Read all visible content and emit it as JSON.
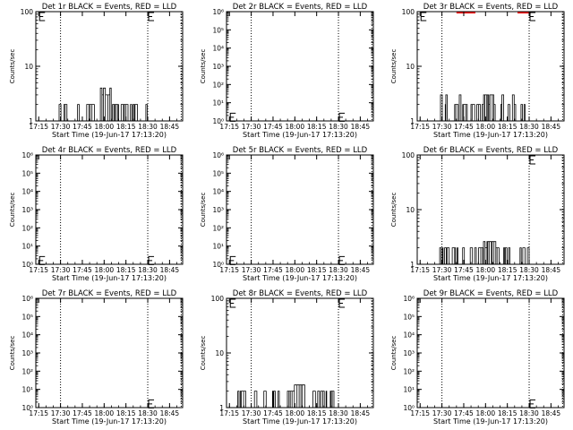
{
  "colors": {
    "events": "#000000",
    "lld": "#ff0000",
    "background": "#ffffff"
  },
  "chart_data": [
    {
      "type": "line",
      "title": "Det 1r BLACK = Events, RED = LLD",
      "xlabel": "Start Time (19-Jun-17 17:13:20)",
      "ylabel": "Counts/sec",
      "scale": "log",
      "ylim": [
        1,
        100
      ],
      "ytick_labels": [
        "1",
        "10",
        "100"
      ],
      "xticks": [
        "17:15",
        "17:30",
        "17:45",
        "18:00",
        "18:15",
        "18:30",
        "18:45"
      ],
      "markers": [
        "17:30",
        "18:30"
      ],
      "end_marker": "18:53",
      "events": {
        "x_range": [
          "17:29",
          "18:31"
        ],
        "levels": [
          1,
          2,
          3,
          4
        ],
        "peak_range": [
          "17:57",
          "18:04"
        ],
        "peak": 4
      },
      "lld": null,
      "legend_glyphs": [
        {
          "time": "17:15",
          "value": 100
        },
        {
          "time": "18:30",
          "value": 100
        }
      ]
    },
    {
      "type": "line",
      "title": "Det 2r BLACK = Events, RED = LLD",
      "xlabel": "Start Time (19-Jun-17 17:13:20)",
      "ylabel": "Counts/sec",
      "scale": "log",
      "ylim": [
        1,
        1000000
      ],
      "ytick_labels": [
        "10⁰",
        "10¹",
        "10²",
        "10³",
        "10⁴",
        "10⁵",
        "10⁶"
      ],
      "xticks": [
        "17:15",
        "17:30",
        "17:45",
        "18:00",
        "18:15",
        "18:30",
        "18:45"
      ],
      "markers": [
        "17:30",
        "18:30"
      ],
      "end_marker": "18:53",
      "events": null,
      "lld": null,
      "legend_glyphs": [
        {
          "time": "17:15",
          "value": 1.5
        },
        {
          "time": "18:30",
          "value": 1.5
        }
      ]
    },
    {
      "type": "line",
      "title": "Det 3r BLACK = Events, RED = LLD",
      "xlabel": "Start Time (19-Jun-17 17:13:20)",
      "ylabel": "Counts/sec",
      "scale": "log",
      "ylim": [
        1,
        100
      ],
      "ytick_labels": [
        "1",
        "10",
        "100"
      ],
      "xticks": [
        "17:15",
        "17:30",
        "17:45",
        "18:00",
        "18:15",
        "18:30",
        "18:45"
      ],
      "markers": [
        "17:30",
        "18:30"
      ],
      "end_marker": "18:53",
      "events": {
        "x_range": [
          "17:29",
          "18:31"
        ],
        "levels": [
          1,
          2,
          3
        ],
        "peak_range": [
          "17:58",
          "18:05"
        ],
        "peak": 3
      },
      "lld": {
        "segments": [
          [
            "17:40",
            "17:53"
          ],
          [
            "18:22",
            "18:31"
          ]
        ],
        "value": 100
      },
      "legend_glyphs": [
        {
          "time": "17:15",
          "value": 100
        },
        {
          "time": "18:30",
          "value": 100
        }
      ]
    },
    {
      "type": "line",
      "title": "Det 4r BLACK = Events, RED = LLD",
      "xlabel": "Start Time (19-Jun-17 17:13:20)",
      "ylabel": "Counts/sec",
      "scale": "log",
      "ylim": [
        1,
        1000000
      ],
      "ytick_labels": [
        "10⁰",
        "10¹",
        "10²",
        "10³",
        "10⁴",
        "10⁵",
        "10⁶"
      ],
      "xticks": [
        "17:15",
        "17:30",
        "17:45",
        "18:00",
        "18:15",
        "18:30",
        "18:45"
      ],
      "markers": [
        "17:30",
        "18:30"
      ],
      "end_marker": "18:53",
      "events": null,
      "lld": null,
      "legend_glyphs": [
        {
          "time": "17:15",
          "value": 1.5
        },
        {
          "time": "18:30",
          "value": 1.5
        }
      ]
    },
    {
      "type": "line",
      "title": "Det 5r BLACK = Events, RED = LLD",
      "xlabel": "Start Time (19-Jun-17 17:13:20)",
      "ylabel": "Counts/sec",
      "scale": "log",
      "ylim": [
        1,
        1000000
      ],
      "ytick_labels": [
        "10⁰",
        "10¹",
        "10²",
        "10³",
        "10⁴",
        "10⁵",
        "10⁶"
      ],
      "xticks": [
        "17:15",
        "17:30",
        "17:45",
        "18:00",
        "18:15",
        "18:30",
        "18:45"
      ],
      "markers": [
        "17:30",
        "18:30"
      ],
      "end_marker": "18:53",
      "events": null,
      "lld": null,
      "legend_glyphs": [
        {
          "time": "17:15",
          "value": 1.5
        },
        {
          "time": "18:30",
          "value": 1.5
        }
      ]
    },
    {
      "type": "line",
      "title": "Det 6r BLACK = Events, RED = LLD",
      "xlabel": "Start Time (19-Jun-17 17:13:20)",
      "ylabel": "Counts/sec",
      "scale": "log",
      "ylim": [
        1,
        100
      ],
      "ytick_labels": [
        "1",
        "10",
        "100"
      ],
      "xticks": [
        "17:15",
        "17:30",
        "17:45",
        "18:00",
        "18:15",
        "18:30",
        "18:45"
      ],
      "markers": [
        "17:30",
        "18:30"
      ],
      "end_marker": "18:53",
      "events": {
        "x_range": [
          "17:28",
          "18:30"
        ],
        "levels": [
          1,
          2
        ],
        "peak_range": [
          "17:58",
          "18:08"
        ],
        "peak": 2.6
      },
      "lld": null,
      "legend_glyphs": [
        {
          "time": "18:30",
          "value": 100
        }
      ]
    },
    {
      "type": "line",
      "title": "Det 7r BLACK = Events, RED = LLD",
      "xlabel": "Start Time (19-Jun-17 17:13:20)",
      "ylabel": "Counts/sec",
      "scale": "log",
      "ylim": [
        1,
        1000000
      ],
      "ytick_labels": [
        "10⁰",
        "10¹",
        "10²",
        "10³",
        "10⁴",
        "10⁵",
        "10⁶"
      ],
      "xticks": [
        "17:15",
        "17:30",
        "17:45",
        "18:00",
        "18:15",
        "18:30",
        "18:45"
      ],
      "markers": [
        "17:30",
        "18:30"
      ],
      "end_marker": "18:53",
      "events": null,
      "lld": null,
      "legend_glyphs": [
        {
          "time": "18:30",
          "value": 1.5
        }
      ]
    },
    {
      "type": "line",
      "title": "Det 8r BLACK = Events, RED = LLD",
      "xlabel": "Start Time (19-Jun-17 17:13:20)",
      "ylabel": "Counts/sec",
      "scale": "log",
      "ylim": [
        1,
        100
      ],
      "ytick_labels": [
        "1",
        "10",
        "100"
      ],
      "xticks": [
        "17:15",
        "17:30",
        "17:45",
        "18:00",
        "18:15",
        "18:30",
        "18:45"
      ],
      "markers": [
        "17:30",
        "18:30"
      ],
      "end_marker": "18:53",
      "events": {
        "x_range": [
          "17:19",
          "18:30"
        ],
        "levels": [
          1,
          2
        ],
        "peak_range": [
          "17:58",
          "18:06"
        ],
        "peak": 2.6
      },
      "lld": null,
      "legend_glyphs": [
        {
          "time": "17:15",
          "value": 100
        },
        {
          "time": "18:30",
          "value": 100
        }
      ]
    },
    {
      "type": "line",
      "title": "Det 9r BLACK = Events, RED = LLD",
      "xlabel": "Start Time (19-Jun-17 17:13:20)",
      "ylabel": "Counts/sec",
      "scale": "log",
      "ylim": [
        1,
        1000000
      ],
      "ytick_labels": [
        "10⁰",
        "10¹",
        "10²",
        "10³",
        "10⁴",
        "10⁵",
        "10⁶"
      ],
      "xticks": [
        "17:15",
        "17:30",
        "17:45",
        "18:00",
        "18:15",
        "18:30",
        "18:45"
      ],
      "markers": [
        "17:30",
        "18:30"
      ],
      "end_marker": "18:53",
      "events": null,
      "lld": null,
      "legend_glyphs": [
        {
          "time": "18:30",
          "value": 1.5
        }
      ]
    }
  ]
}
